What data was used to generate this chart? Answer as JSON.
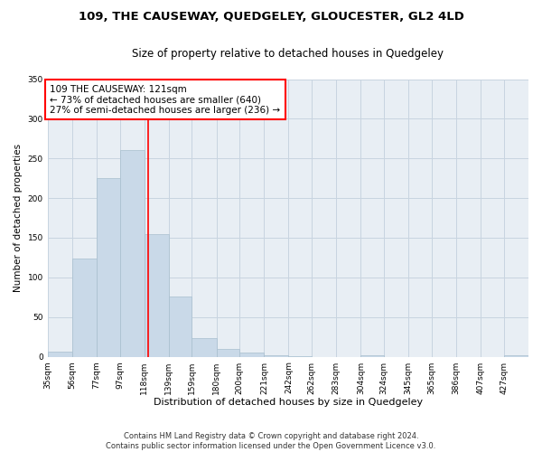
{
  "title": "109, THE CAUSEWAY, QUEDGELEY, GLOUCESTER, GL2 4LD",
  "subtitle": "Size of property relative to detached houses in Quedgeley",
  "xlabel": "Distribution of detached houses by size in Quedgeley",
  "ylabel": "Number of detached properties",
  "bar_edges": [
    35,
    56,
    77,
    97,
    118,
    139,
    159,
    180,
    200,
    221,
    242,
    262,
    283,
    304,
    324,
    345,
    365,
    386,
    407,
    427,
    448
  ],
  "bar_heights": [
    6,
    124,
    225,
    260,
    155,
    76,
    24,
    10,
    5,
    2,
    1,
    0,
    0,
    2,
    0,
    0,
    0,
    0,
    0,
    2
  ],
  "bar_color": "#c9d9e8",
  "bar_edgecolor": "#a8bece",
  "vline_x": 121,
  "vline_color": "red",
  "annotation_text": "109 THE CAUSEWAY: 121sqm\n← 73% of detached houses are smaller (640)\n27% of semi-detached houses are larger (236) →",
  "annotation_box_edgecolor": "red",
  "ylim": [
    0,
    350
  ],
  "yticks": [
    0,
    50,
    100,
    150,
    200,
    250,
    300,
    350
  ],
  "grid_color": "#c8d4e0",
  "background_color": "#e8eef4",
  "footer_line1": "Contains HM Land Registry data © Crown copyright and database right 2024.",
  "footer_line2": "Contains public sector information licensed under the Open Government Licence v3.0.",
  "title_fontsize": 9.5,
  "subtitle_fontsize": 8.5,
  "xlabel_fontsize": 8,
  "ylabel_fontsize": 7.5,
  "tick_fontsize": 6.5,
  "annotation_fontsize": 7.5,
  "footer_fontsize": 6
}
